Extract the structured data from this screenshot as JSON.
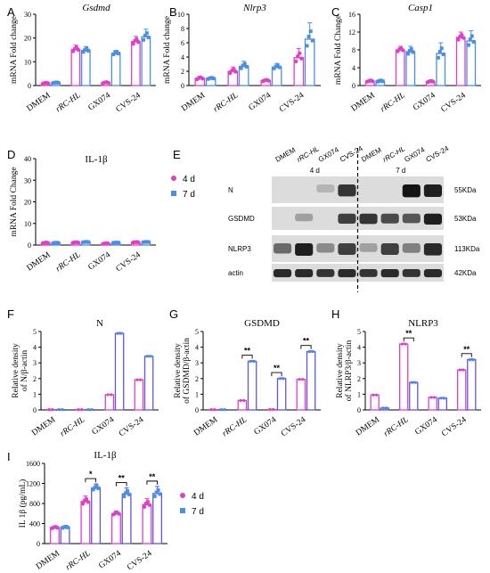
{
  "colors": {
    "d4": "#e040c8",
    "d7": "#4a8ee8",
    "d7bar": "#5e55e8"
  },
  "legend": {
    "d4": "4 d",
    "d7": "7 d"
  },
  "categories": [
    "DMEM",
    "rRC-HL",
    "GX074",
    "CVS-24"
  ],
  "chart_data": [
    {
      "id": "A",
      "type": "bar",
      "title": "Gsdmd",
      "ylabel": "mRNA Fold change",
      "ylim": [
        0,
        30
      ],
      "yticks": [
        "0",
        "10",
        "20",
        "30"
      ],
      "series": [
        {
          "name": "4 d",
          "values": [
            1.0,
            15.2,
            1.2,
            18.5
          ],
          "errors": [
            0.4,
            1.8,
            0.5,
            2.2
          ]
        },
        {
          "name": "7 d",
          "values": [
            1.2,
            14.8,
            13.6,
            20.5
          ],
          "errors": [
            0.3,
            1.6,
            1.2,
            3.2
          ]
        }
      ]
    },
    {
      "id": "B",
      "type": "bar",
      "title": "Nlrp3",
      "ylabel": "mRNA Fold change",
      "ylim": [
        0,
        10
      ],
      "yticks": [
        "0",
        "2",
        "4",
        "6",
        "8",
        "10"
      ],
      "series": [
        {
          "name": "4 d",
          "values": [
            1.0,
            2.0,
            0.7,
            3.9
          ],
          "errors": [
            0.3,
            0.6,
            0.2,
            1.3
          ]
        },
        {
          "name": "7 d",
          "values": [
            1.0,
            2.7,
            2.6,
            6.5
          ],
          "errors": [
            0.2,
            0.7,
            0.5,
            2.3
          ]
        }
      ]
    },
    {
      "id": "C",
      "type": "bar",
      "title": "Casp1",
      "ylabel": "mRNA Fold Change",
      "ylim": [
        0,
        16
      ],
      "yticks": [
        "0",
        "4",
        "8",
        "12",
        "16"
      ],
      "series": [
        {
          "name": "4 d",
          "values": [
            1.0,
            8.0,
            0.9,
            10.8
          ],
          "errors": [
            0.3,
            0.8,
            0.3,
            1.2
          ]
        },
        {
          "name": "7 d",
          "values": [
            1.0,
            7.6,
            7.2,
            10.0
          ],
          "errors": [
            0.3,
            1.2,
            2.4,
            2.3
          ]
        }
      ]
    },
    {
      "id": "D",
      "type": "bar",
      "title": "IL-1β",
      "ylabel": "mRNA Fold Change",
      "ylim": [
        0,
        40
      ],
      "yticks": [
        "0",
        "10",
        "20",
        "30",
        "40"
      ],
      "series": [
        {
          "name": "4 d",
          "values": [
            1.0,
            1.2,
            0.7,
            1.3
          ],
          "errors": [
            0.3,
            0.2,
            0.3,
            0.2
          ]
        },
        {
          "name": "7 d",
          "values": [
            1.0,
            1.4,
            1.1,
            1.4
          ],
          "errors": [
            0.3,
            0.2,
            0.2,
            0.2
          ]
        }
      ]
    },
    {
      "id": "F",
      "type": "bar",
      "title": "N",
      "ylabel": "Relative density of N/β-actin",
      "ylim": [
        0,
        5
      ],
      "yticks": [
        "0",
        "1",
        "2",
        "3",
        "4",
        "5"
      ],
      "series": [
        {
          "name": "4 d",
          "values": [
            0.02,
            0.02,
            0.97,
            1.92
          ],
          "errors": [
            0,
            0,
            0.03,
            0.03
          ]
        },
        {
          "name": "7 d",
          "values": [
            0.02,
            0.02,
            4.88,
            3.42
          ],
          "errors": [
            0,
            0,
            0.05,
            0.04
          ]
        }
      ]
    },
    {
      "id": "G",
      "type": "bar",
      "title": "GSDMD",
      "ylabel": "Relative density of GSDMD/β-actin",
      "ylim": [
        0,
        5
      ],
      "yticks": [
        "0",
        "1",
        "2",
        "3",
        "4",
        "5"
      ],
      "series": [
        {
          "name": "4 d",
          "values": [
            0.02,
            0.6,
            0.03,
            1.95
          ],
          "errors": [
            0,
            0.03,
            0,
            0.03
          ]
        },
        {
          "name": "7 d",
          "values": [
            0.02,
            3.1,
            2.0,
            3.72
          ],
          "errors": [
            0,
            0.05,
            0.04,
            0.05
          ]
        }
      ],
      "significance": [
        "",
        "**",
        "**",
        "**"
      ]
    },
    {
      "id": "H",
      "type": "bar",
      "title": "NLRP3",
      "ylabel": "Relative density of NLRP3/β-actin",
      "ylim": [
        0,
        5
      ],
      "yticks": [
        "0",
        "1",
        "2",
        "3",
        "4",
        "5"
      ],
      "series": [
        {
          "name": "4 d",
          "values": [
            0.95,
            4.2,
            0.8,
            2.55
          ],
          "errors": [
            0.03,
            0.05,
            0.03,
            0.04
          ]
        },
        {
          "name": "7 d",
          "values": [
            0.12,
            1.75,
            0.75,
            3.2
          ],
          "errors": [
            0.02,
            0.04,
            0.03,
            0.05
          ]
        }
      ],
      "significance": [
        "",
        "**",
        "",
        "**"
      ]
    },
    {
      "id": "I",
      "type": "bar",
      "title": "IL-1β",
      "ylabel": "IL 1β (pg/mL)",
      "ylim": [
        0,
        1600
      ],
      "yticks": [
        "0",
        "400",
        "800",
        "1200",
        "1600"
      ],
      "series": [
        {
          "name": "4 d",
          "values": [
            320,
            840,
            600,
            780
          ],
          "errors": [
            30,
            110,
            50,
            120
          ]
        },
        {
          "name": "7 d",
          "values": [
            325,
            1110,
            990,
            1000
          ],
          "errors": [
            30,
            80,
            120,
            140
          ]
        }
      ],
      "significance": [
        "",
        "*",
        "**",
        "**"
      ]
    }
  ],
  "panel_E": {
    "label": "E",
    "lanes": [
      "DMEM",
      "rRC-HL",
      "GX074",
      "CVS-24",
      "DMEM",
      "rRC-HL",
      "GX074",
      "CVS-24"
    ],
    "groups": [
      "4 d",
      "7 d"
    ],
    "rows": [
      {
        "name": "N",
        "kda": "55KDa",
        "intensity": [
          0,
          0,
          0.25,
          0.85,
          0,
          0,
          1.0,
          0.95
        ]
      },
      {
        "name": "GSDMD",
        "kda": "53KDa",
        "intensity": [
          0,
          0.35,
          0,
          0.8,
          0.85,
          0.75,
          0.7,
          0.95
        ]
      },
      {
        "name": "NLRP3",
        "kda": "113KDa",
        "intensity": [
          0.6,
          0.95,
          0.45,
          0.8,
          0.35,
          0.8,
          0.5,
          0.9
        ]
      },
      {
        "name": "actin",
        "kda": "42KDa",
        "intensity": [
          0.9,
          0.9,
          0.85,
          0.9,
          0.85,
          0.9,
          0.85,
          0.9
        ]
      }
    ]
  }
}
